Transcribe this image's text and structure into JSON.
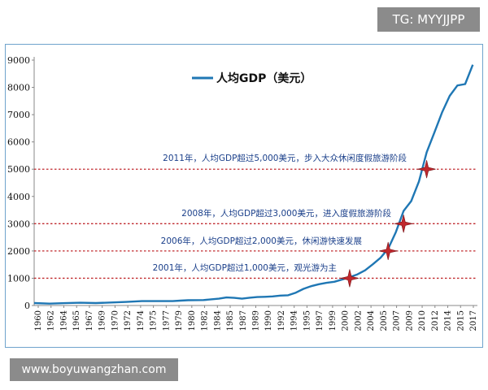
{
  "watermarks": {
    "top_right": "TG: MYYJJPP",
    "bottom_left": "www.boyuwangzhan.com"
  },
  "chart_data": {
    "type": "line",
    "title": "",
    "xlabel": "",
    "ylabel": "",
    "ylim": [
      0,
      9000
    ],
    "yticks": [
      0,
      1000,
      2000,
      3000,
      4000,
      5000,
      6000,
      7000,
      8000,
      9000
    ],
    "xticks": [
      "1960",
      "1962",
      "1964",
      "1965",
      "1967",
      "1969",
      "1970",
      "1972",
      "1974",
      "1975",
      "1977",
      "1979",
      "1980",
      "1982",
      "1984",
      "1985",
      "1987",
      "1989",
      "1990",
      "1992",
      "1994",
      "1995",
      "1997",
      "1999",
      "2000",
      "2002",
      "2004",
      "2005",
      "2007",
      "2009",
      "2010",
      "2012",
      "2014",
      "2015",
      "2017"
    ],
    "grid": false,
    "legend": "top-left",
    "series": [
      {
        "name": "人均GDP（美元）",
        "color": "#1f77b4",
        "points": [
          [
            1960,
            90
          ],
          [
            1962,
            70
          ],
          [
            1964,
            85
          ],
          [
            1966,
            100
          ],
          [
            1968,
            90
          ],
          [
            1970,
            110
          ],
          [
            1972,
            130
          ],
          [
            1974,
            160
          ],
          [
            1976,
            160
          ],
          [
            1978,
            160
          ],
          [
            1979,
            180
          ],
          [
            1980,
            195
          ],
          [
            1982,
            200
          ],
          [
            1984,
            250
          ],
          [
            1985,
            295
          ],
          [
            1986,
            280
          ],
          [
            1987,
            250
          ],
          [
            1988,
            285
          ],
          [
            1989,
            310
          ],
          [
            1990,
            320
          ],
          [
            1991,
            335
          ],
          [
            1992,
            365
          ],
          [
            1993,
            375
          ],
          [
            1994,
            470
          ],
          [
            1995,
            610
          ],
          [
            1996,
            710
          ],
          [
            1997,
            780
          ],
          [
            1998,
            830
          ],
          [
            1999,
            870
          ],
          [
            2000,
            950
          ],
          [
            2001,
            1040
          ],
          [
            2002,
            1140
          ],
          [
            2003,
            1290
          ],
          [
            2004,
            1510
          ],
          [
            2005,
            1750
          ],
          [
            2006,
            2080
          ],
          [
            2007,
            2690
          ],
          [
            2008,
            3470
          ],
          [
            2009,
            3830
          ],
          [
            2010,
            4550
          ],
          [
            2011,
            5620
          ],
          [
            2012,
            6340
          ],
          [
            2013,
            7080
          ],
          [
            2014,
            7690
          ],
          [
            2015,
            8070
          ],
          [
            2016,
            8120
          ],
          [
            2017,
            8830
          ]
        ]
      }
    ],
    "reference_lines": [
      1000,
      2000,
      3000,
      5000
    ],
    "reference_line_color": "#c0282d",
    "markers": [
      {
        "year": 2001,
        "value": 1000,
        "label": "2001年，人均GDP超过1,000美元，观光游为主"
      },
      {
        "year": 2006,
        "value": 2000,
        "label": "2006年，人均GDP超过2,000美元，休闲游快速发展"
      },
      {
        "year": 2008,
        "value": 3000,
        "label": "2008年，人均GDP超过3,000美元，进入度假旅游阶段"
      },
      {
        "year": 2011,
        "value": 5000,
        "label": "2011年，人均GDP超过5,000美元，步入大众休闲度假旅游阶段"
      }
    ]
  }
}
